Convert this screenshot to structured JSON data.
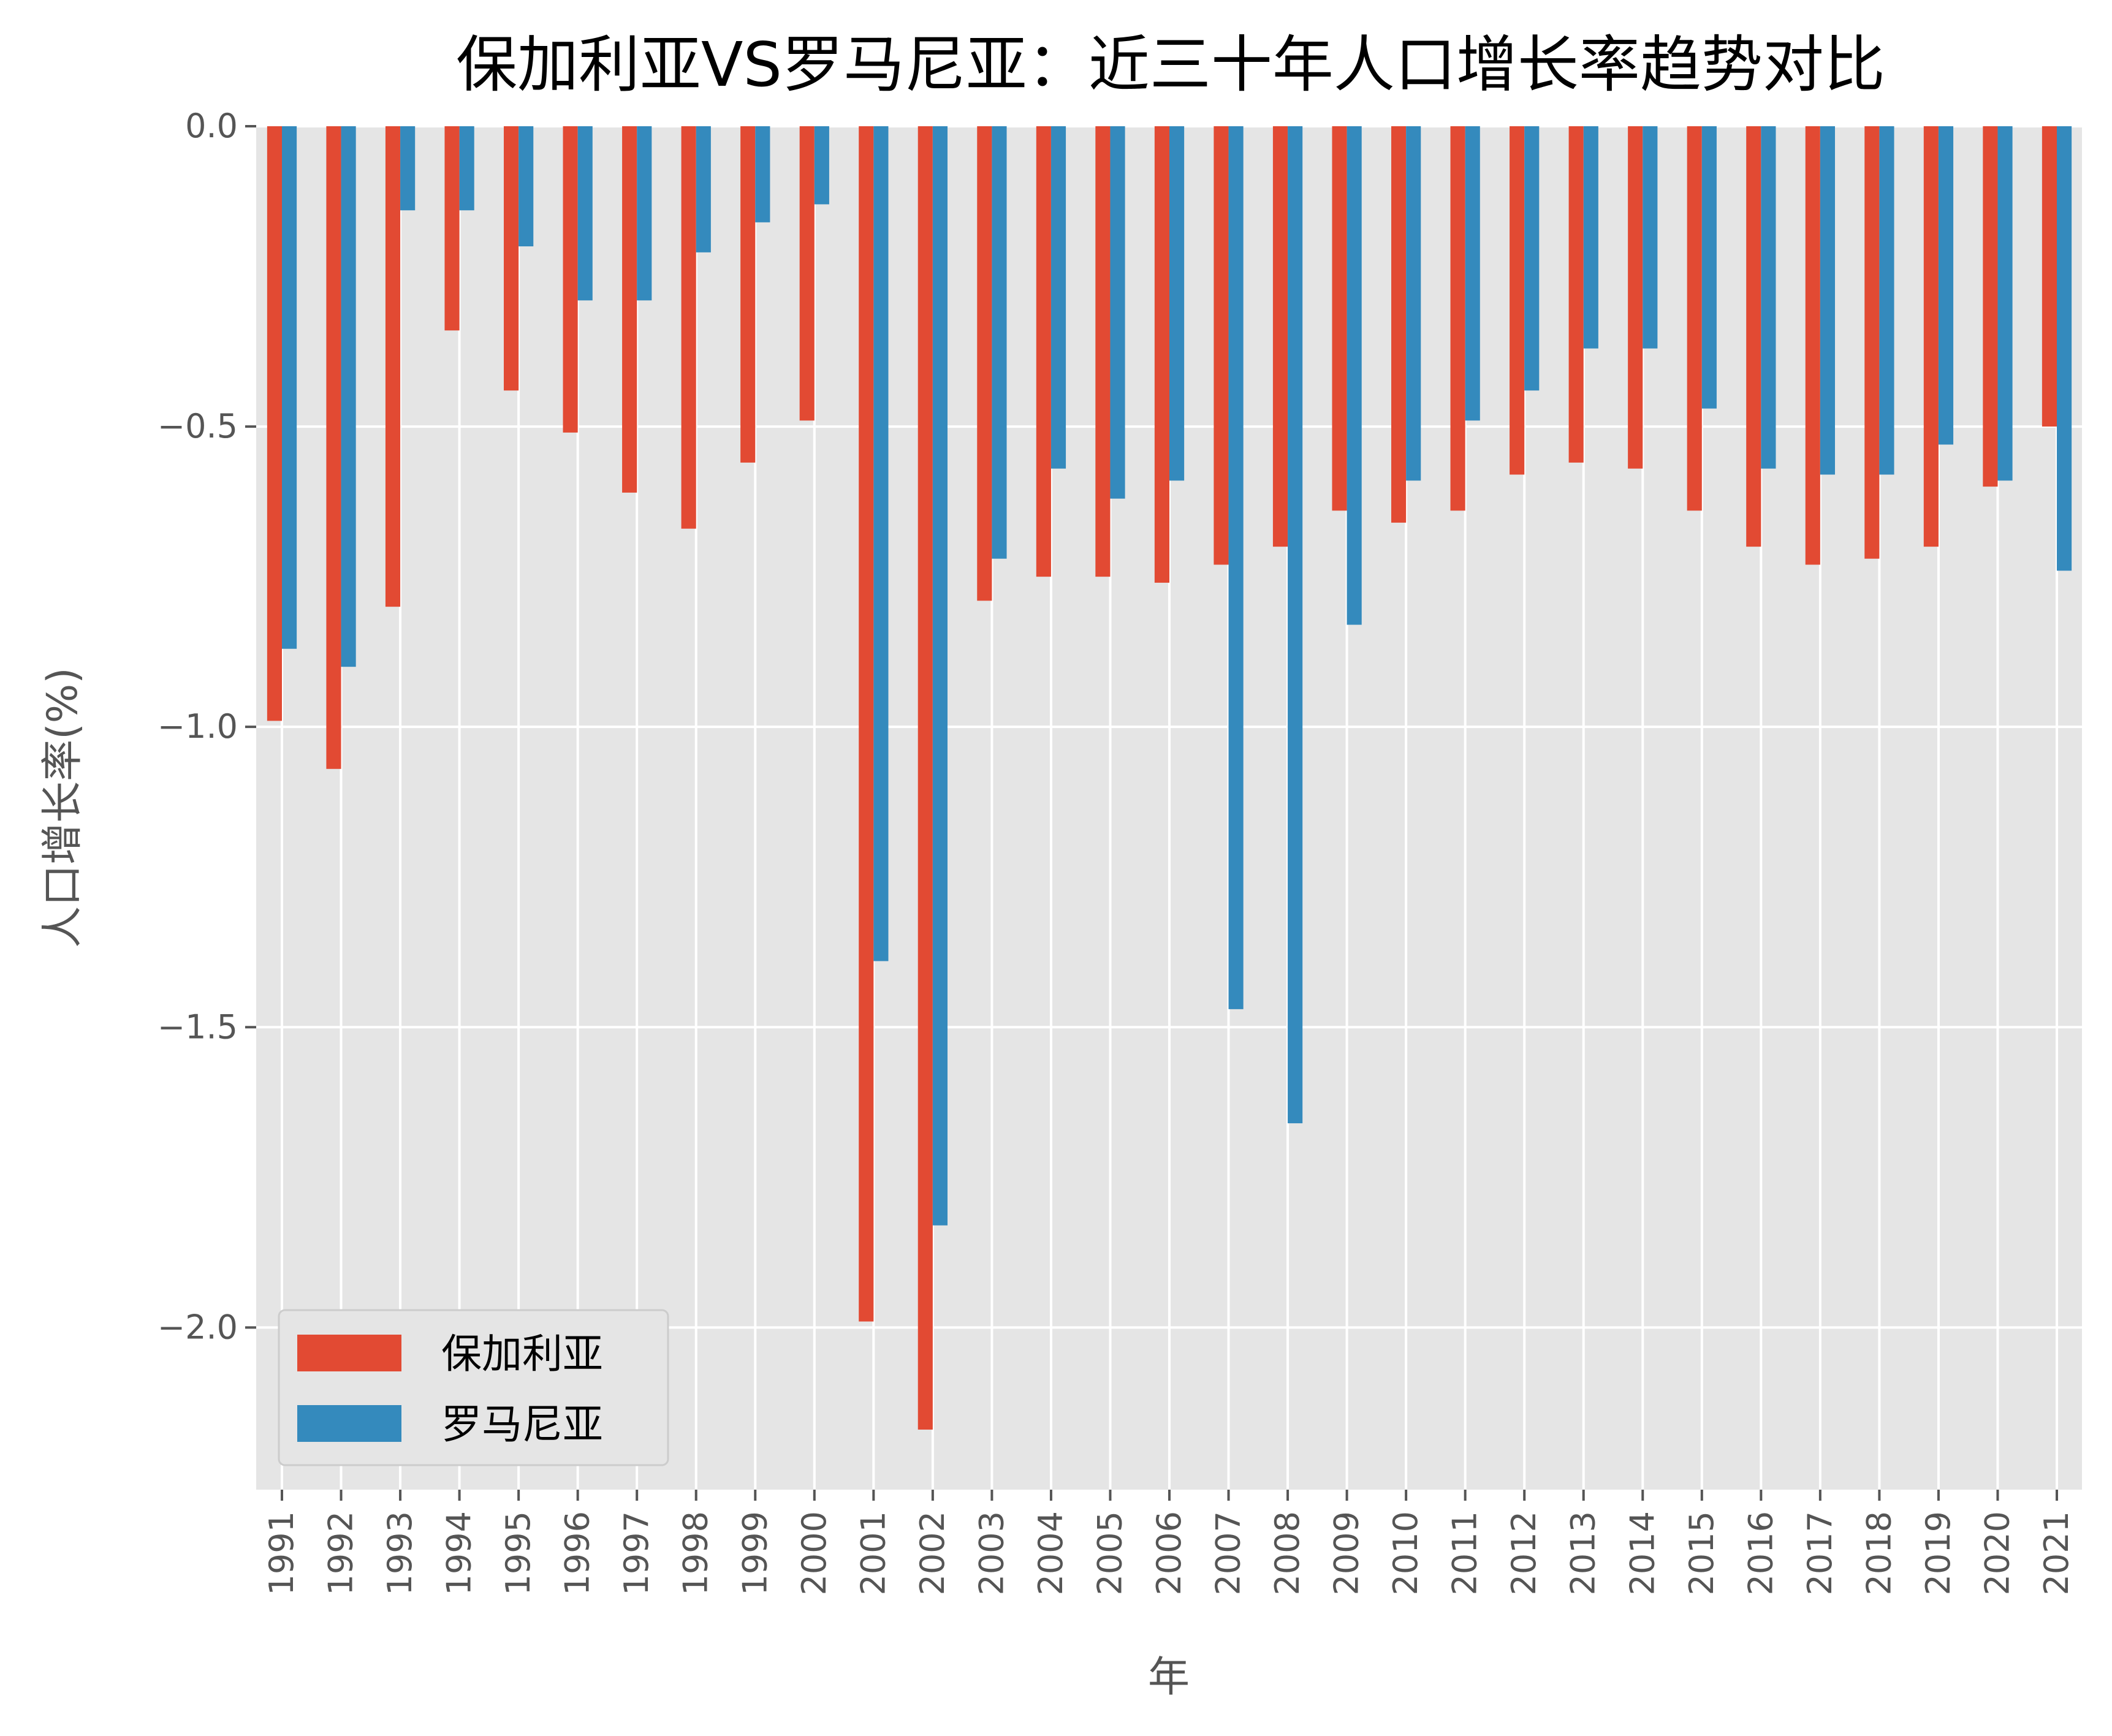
{
  "chart_data": {
    "type": "bar",
    "title": "保加利亚VS罗马尼亚：近三十年人口增长率趋势对比",
    "xlabel": "年",
    "ylabel": "人口增长率(%)",
    "ylim": [
      -2.27,
      0
    ],
    "yticks": [
      "0.0",
      "−0.5",
      "−1.0",
      "−1.5",
      "−2.0"
    ],
    "ytick_values": [
      0,
      -0.5,
      -1.0,
      -1.5,
      -2.0
    ],
    "grid": true,
    "legend": "lower-left",
    "background": "#E5E5E5",
    "categories": [
      "1991",
      "1992",
      "1993",
      "1994",
      "1995",
      "1996",
      "1997",
      "1998",
      "1999",
      "2000",
      "2001",
      "2002",
      "2003",
      "2004",
      "2005",
      "2006",
      "2007",
      "2008",
      "2009",
      "2010",
      "2011",
      "2012",
      "2013",
      "2014",
      "2015",
      "2016",
      "2017",
      "2018",
      "2019",
      "2020",
      "2021"
    ],
    "series": [
      {
        "name": "保加利亚",
        "color": "#E24A33",
        "values": [
          -0.99,
          -1.07,
          -0.8,
          -0.34,
          -0.44,
          -0.51,
          -0.61,
          -0.67,
          -0.56,
          -0.49,
          -1.99,
          -2.17,
          -0.79,
          -0.75,
          -0.75,
          -0.76,
          -0.73,
          -0.7,
          -0.64,
          -0.66,
          -0.64,
          -0.58,
          -0.56,
          -0.57,
          -0.64,
          -0.7,
          -0.73,
          -0.72,
          -0.7,
          -0.6,
          -0.5
        ]
      },
      {
        "name": "罗马尼亚",
        "color": "#348ABD",
        "values": [
          -0.87,
          -0.9,
          -0.14,
          -0.14,
          -0.2,
          -0.29,
          -0.29,
          -0.21,
          -0.16,
          -0.13,
          -1.39,
          -1.83,
          -0.72,
          -0.57,
          -0.62,
          -0.59,
          -1.47,
          -1.66,
          -0.83,
          -0.59,
          -0.49,
          -0.44,
          -0.37,
          -0.37,
          -0.47,
          -0.57,
          -0.58,
          -0.58,
          -0.53,
          -0.59,
          -0.74
        ]
      }
    ]
  }
}
